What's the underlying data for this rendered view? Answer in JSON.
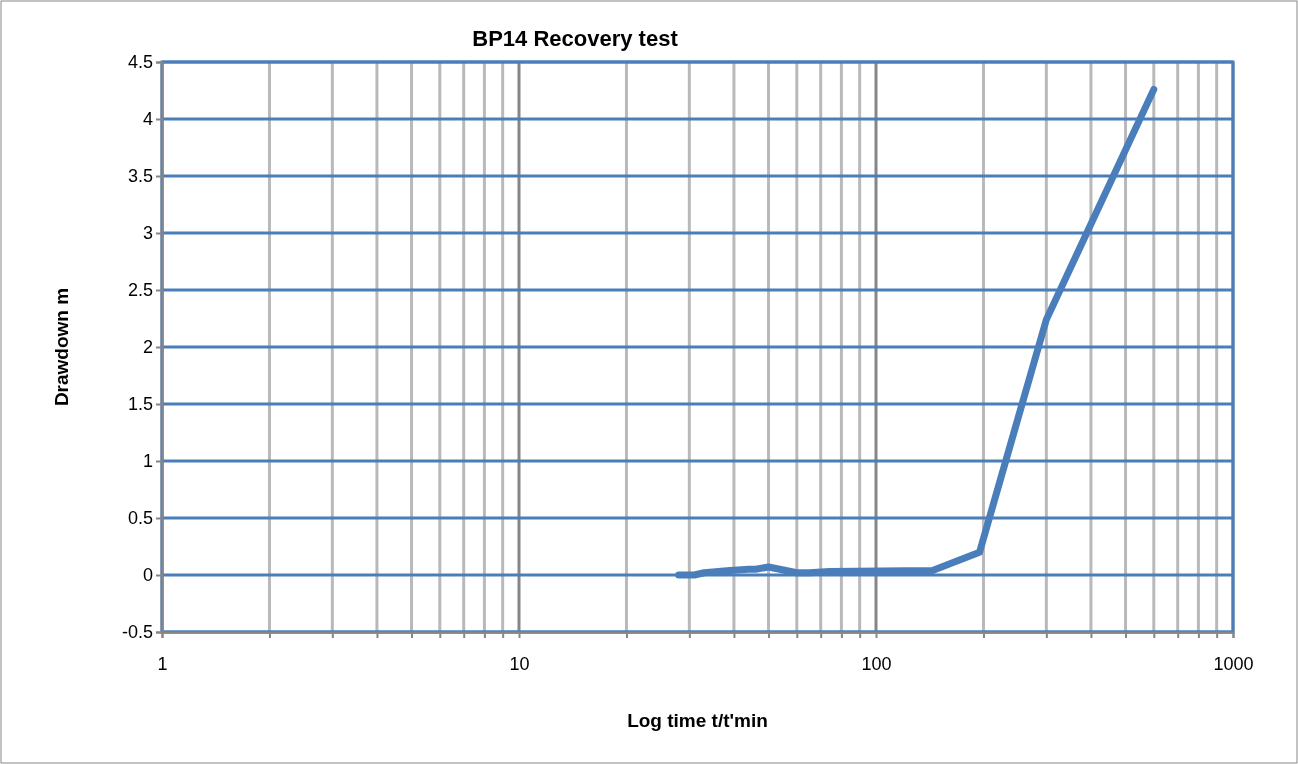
{
  "chart_data": {
    "type": "line",
    "title": "BP14 Recovery test",
    "xlabel": "Log time t/t'min",
    "ylabel": "Drawdown m",
    "log": "x",
    "grid": true,
    "marker": "none",
    "line_style": "solid",
    "xlim": [
      1,
      1000
    ],
    "xticks": [
      1,
      {
        "value": 2,
        "label": null
      },
      {
        "value": 3,
        "label": null
      },
      {
        "value": 4,
        "label": null
      },
      {
        "value": 5,
        "label": null
      },
      {
        "value": 6,
        "label": null
      },
      {
        "value": 7,
        "label": null
      },
      {
        "value": 8,
        "label": null
      },
      {
        "value": 9,
        "label": null
      },
      10,
      {
        "value": 20,
        "label": null
      },
      {
        "value": 30,
        "label": null
      },
      {
        "value": 40,
        "label": null
      },
      {
        "value": 50,
        "label": null
      },
      {
        "value": 60,
        "label": null
      },
      {
        "value": 70,
        "label": null
      },
      {
        "value": 80,
        "label": null
      },
      {
        "value": 90,
        "label": null
      },
      100,
      {
        "value": 200,
        "label": null
      },
      {
        "value": 300,
        "label": null
      },
      {
        "value": 400,
        "label": null
      },
      {
        "value": 500,
        "label": null
      },
      {
        "value": 600,
        "label": null
      },
      {
        "value": 700,
        "label": null
      },
      {
        "value": 800,
        "label": null
      },
      {
        "value": 900,
        "label": null
      },
      1000
    ],
    "ylim": [
      -0.5,
      4.5
    ],
    "yticks": [
      -0.5,
      0,
      0.5,
      1,
      1.5,
      2,
      2.5,
      3,
      3.5,
      4,
      4.5
    ],
    "series": [
      {
        "color": "#4a7ebb",
        "x": [
          28,
          31,
          33,
          39,
          44,
          46,
          50,
          60,
          65,
          74,
          144,
          195,
          300,
          600
        ],
        "values": [
          0,
          0,
          0.02,
          0.04,
          0.05,
          0.05,
          0.07,
          0.02,
          0.02,
          0.03,
          0.04,
          0.2,
          2.24,
          4.26
        ]
      }
    ]
  }
}
